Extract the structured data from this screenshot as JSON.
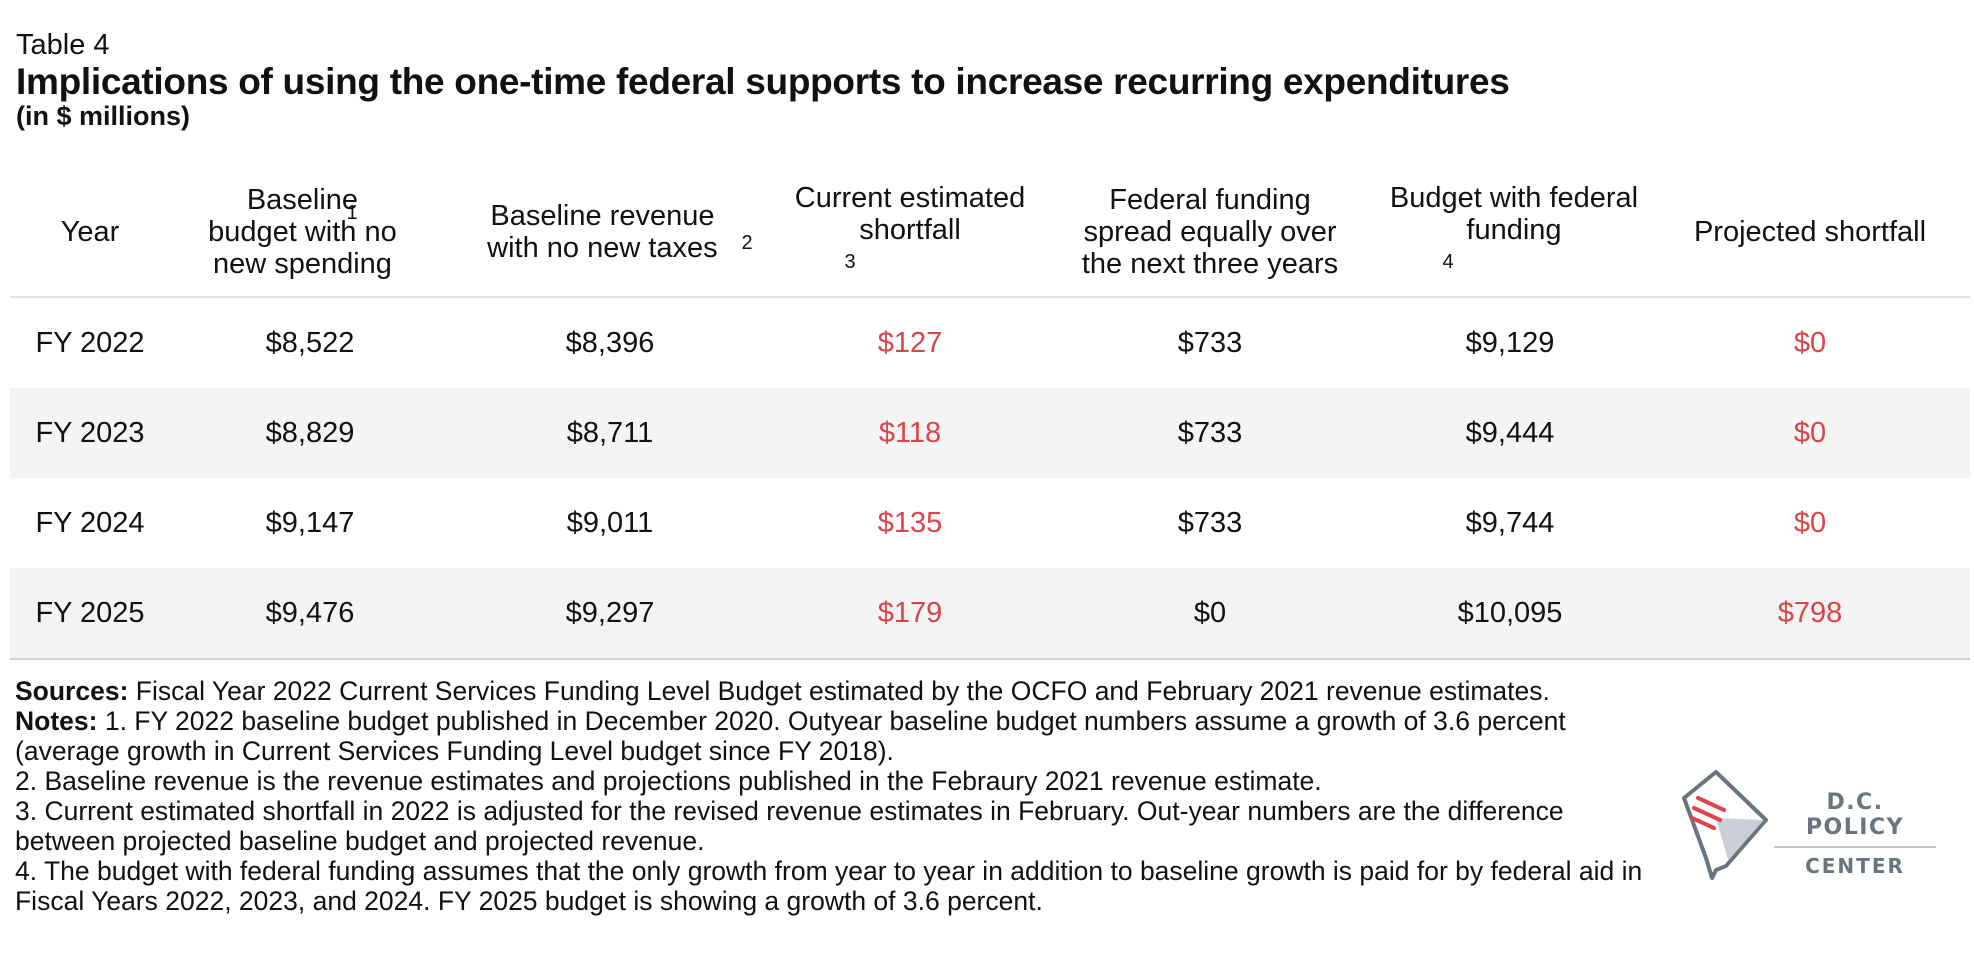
{
  "header": {
    "label": "Table 4",
    "title": "Implications of using the one-time federal supports to increase recurring expenditures",
    "subtitle": "(in $ millions)"
  },
  "table": {
    "columns": [
      {
        "label": "Year",
        "note": ""
      },
      {
        "label": "Baseline budget with no new spending",
        "note": "1"
      },
      {
        "label": "Baseline revenue with no new taxes",
        "note": "2"
      },
      {
        "label": "Current estimated shortfall",
        "note": "3"
      },
      {
        "label": "Federal funding spread equally over the next three years",
        "note": ""
      },
      {
        "label": "Budget with federal funding",
        "note": "4"
      },
      {
        "label": "Projected shortfall",
        "note": ""
      }
    ],
    "rows": [
      [
        "FY 2022",
        "$8,522",
        "$8,396",
        "$127",
        "$733",
        "$9,129",
        "$0"
      ],
      [
        "FY 2023",
        "$8,829",
        "$8,711",
        "$118",
        "$733",
        "$9,444",
        "$0"
      ],
      [
        "FY 2024",
        "$9,147",
        "$9,011",
        "$135",
        "$733",
        "$9,744",
        "$0"
      ],
      [
        "FY 2025",
        "$9,476",
        "$9,297",
        "$179",
        "$0",
        "$10,095",
        "$798"
      ]
    ]
  },
  "footnotes": {
    "sources_label": "Sources:",
    "sources_text": "Fiscal Year 2022 Current Services Funding Level Budget estimated by the OCFO and February 2021 revenue estimates.",
    "notes_label": "Notes:",
    "note1": "1. FY 2022 baseline budget published in December 2020. Outyear baseline budget numbers assume a growth of 3.6 percent (average growth in Current Services Funding Level budget since FY 2018).",
    "note2": "2. Baseline revenue is the revenue estimates and projections published in the Febraury 2021 revenue estimate.",
    "note3": "3. Current estimated shortfall in 2022 is adjusted for the revised revenue estimates in February. Out-year numbers are the difference between projected baseline budget and projected revenue.",
    "note4": "4. The budget with federal funding assumes that the only growth from year to year in addition to baseline growth is paid for by federal aid in Fiscal Years 2022, 2023, and 2024. FY 2025 budget is showing a growth of 3.6 percent."
  },
  "logo": {
    "line1": "D.C. POLICY",
    "line2": "CENTER",
    "icon": "dc-map-icon",
    "colors": {
      "gray": "#6a7480",
      "red": "#e0444b"
    }
  },
  "colors": {
    "shortfall": "#d9434a",
    "row_shade": "#f4f4f4"
  }
}
